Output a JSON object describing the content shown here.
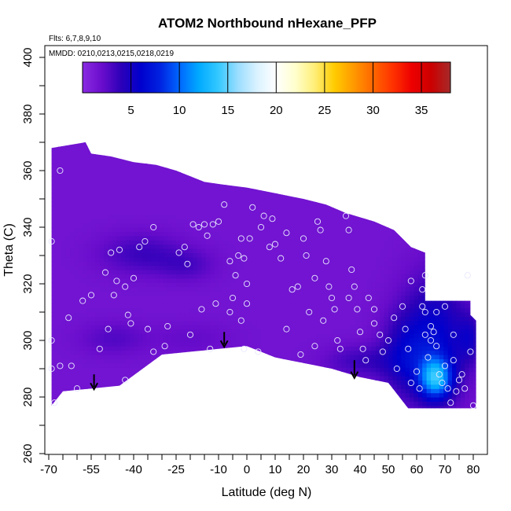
{
  "chart_data": {
    "type": "heatmap",
    "title": "ATOM2 Northbound nHexane_PFP",
    "subtitle_lines": [
      "Flts: 6,7,8,9,10",
      "MMDD: 0210,0213,0215,0218,0219"
    ],
    "xlabel": "Latitude (deg N)",
    "ylabel": "Theta (C)",
    "xlim": [
      -72,
      83
    ],
    "ylim": [
      260,
      405
    ],
    "xticks": [
      -70,
      -55,
      -40,
      -25,
      -10,
      0,
      10,
      20,
      30,
      40,
      50,
      60,
      70,
      80
    ],
    "xtick_labels": [
      "-70",
      "-55",
      "-40",
      "-25",
      "-10",
      "0",
      "10",
      "20",
      "30",
      "40",
      "50",
      "60",
      "70",
      "80"
    ],
    "yticks": [
      260,
      280,
      300,
      320,
      340,
      360,
      380,
      400
    ],
    "ytick_labels": [
      "260",
      "280",
      "300",
      "320",
      "340",
      "360",
      "380",
      "400"
    ],
    "colorbar": {
      "min": 0,
      "max": 38,
      "ticks": [
        5,
        10,
        15,
        20,
        25,
        30,
        35
      ],
      "tick_labels": [
        "5",
        "10",
        "15",
        "20",
        "25",
        "30",
        "35"
      ],
      "colors": [
        "#8a2be2",
        "#6a0dcc",
        "#2c00b8",
        "#0000cd",
        "#0022e0",
        "#0066ff",
        "#00aaff",
        "#33c8ff",
        "#99ddff",
        "#d9f2ff",
        "#ffffff",
        "#ffffcc",
        "#ffee77",
        "#ffcc00",
        "#ff9900",
        "#ff6600",
        "#ff3300",
        "#ee0000",
        "#cc0000",
        "#a52a2a"
      ]
    },
    "field": {
      "top_boundary": [
        [
          -69,
          368
        ],
        [
          -57,
          370
        ],
        [
          -55,
          366
        ],
        [
          -48,
          365
        ],
        [
          -40,
          363
        ],
        [
          -32,
          362
        ],
        [
          -25,
          360
        ],
        [
          -15,
          356
        ],
        [
          -8,
          355
        ],
        [
          0,
          354
        ],
        [
          10,
          352
        ],
        [
          20,
          350
        ],
        [
          28,
          348
        ],
        [
          35,
          345
        ],
        [
          45,
          342
        ],
        [
          52,
          339
        ],
        [
          58,
          333
        ],
        [
          63,
          331
        ],
        [
          63,
          314
        ],
        [
          79,
          314
        ],
        [
          79,
          309
        ],
        [
          81,
          307
        ]
      ],
      "bottom_boundary": [
        [
          81,
          276
        ],
        [
          57,
          276
        ],
        [
          50,
          285
        ],
        [
          40,
          287
        ],
        [
          30,
          290
        ],
        [
          15,
          293
        ],
        [
          10,
          294
        ],
        [
          0,
          298
        ],
        [
          -10,
          297
        ],
        [
          -30,
          295
        ],
        [
          -45,
          284
        ],
        [
          -55,
          283
        ],
        [
          -65,
          282
        ],
        [
          -69,
          277
        ]
      ],
      "base_value": 1.5,
      "blobs": [
        {
          "x": -38,
          "y": 330,
          "sx": 10,
          "sy": 5,
          "v": 3.5
        },
        {
          "x": -22,
          "y": 326,
          "sx": 7,
          "sy": 4,
          "v": 3.0
        },
        {
          "x": -48,
          "y": 300,
          "sx": 8,
          "sy": 4,
          "v": 2.8
        },
        {
          "x": -20,
          "y": 300,
          "sx": 10,
          "sy": 4,
          "v": 2.2
        },
        {
          "x": 40,
          "y": 292,
          "sx": 9,
          "sy": 4,
          "v": 3.5
        },
        {
          "x": 55,
          "y": 294,
          "sx": 6,
          "sy": 10,
          "v": 4.5
        },
        {
          "x": 66,
          "y": 300,
          "sx": 8,
          "sy": 15,
          "v": 6.0
        },
        {
          "x": 66,
          "y": 286,
          "sx": 4,
          "sy": 5,
          "v": 11.0
        },
        {
          "x": 78,
          "y": 300,
          "sx": 3,
          "sy": 6,
          "v": 4.0
        }
      ]
    },
    "samples": [
      [
        -69,
        335
      ],
      [
        -69,
        300
      ],
      [
        -69,
        290
      ],
      [
        -68,
        278
      ],
      [
        -66,
        360
      ],
      [
        -66,
        291
      ],
      [
        -63,
        308
      ],
      [
        -62,
        291
      ],
      [
        -60,
        283
      ],
      [
        -52,
        297
      ],
      [
        -50,
        324
      ],
      [
        -48,
        331
      ],
      [
        -45,
        332
      ],
      [
        -43,
        319
      ],
      [
        -43,
        286
      ],
      [
        -42,
        309
      ],
      [
        -41,
        306
      ],
      [
        -40,
        322
      ],
      [
        -38,
        333
      ],
      [
        -36,
        335
      ],
      [
        -33,
        340
      ],
      [
        -22,
        333
      ],
      [
        -19,
        341
      ],
      [
        -17,
        340
      ],
      [
        -15,
        341
      ],
      [
        -12,
        341
      ],
      [
        -8,
        348
      ],
      [
        -6,
        328
      ],
      [
        -6,
        310
      ],
      [
        -5,
        315
      ],
      [
        -4,
        323
      ],
      [
        -3,
        330
      ],
      [
        -2,
        336
      ],
      [
        -1,
        297
      ],
      [
        0,
        313
      ],
      [
        0,
        320
      ],
      [
        -1,
        329
      ],
      [
        1,
        336
      ],
      [
        2,
        347
      ],
      [
        -10,
        342
      ],
      [
        -14,
        337
      ],
      [
        -13,
        297
      ],
      [
        -11,
        313
      ],
      [
        -16,
        311
      ],
      [
        -20,
        302
      ],
      [
        -21,
        327
      ],
      [
        -24,
        331
      ],
      [
        -28,
        305
      ],
      [
        -29,
        298
      ],
      [
        -33,
        296
      ],
      [
        -35,
        304
      ],
      [
        -46,
        321
      ],
      [
        -47,
        316
      ],
      [
        -49,
        304
      ],
      [
        -55,
        316
      ],
      [
        -58,
        314
      ],
      [
        4,
        296
      ],
      [
        5,
        340
      ],
      [
        6,
        344
      ],
      [
        9,
        343
      ],
      [
        10,
        334
      ],
      [
        12,
        329
      ],
      [
        14,
        304
      ],
      [
        16,
        318
      ],
      [
        18,
        319
      ],
      [
        19,
        295
      ],
      [
        20,
        336
      ],
      [
        21,
        330
      ],
      [
        22,
        310
      ],
      [
        24,
        298
      ],
      [
        25,
        342
      ],
      [
        26,
        339
      ],
      [
        27,
        307
      ],
      [
        28,
        328
      ],
      [
        29,
        319
      ],
      [
        30,
        315
      ],
      [
        31,
        311
      ],
      [
        32,
        300
      ],
      [
        33,
        297
      ],
      [
        35,
        344
      ],
      [
        36,
        339
      ],
      [
        37,
        325
      ],
      [
        38,
        319
      ],
      [
        39,
        311
      ],
      [
        40,
        303
      ],
      [
        41,
        297
      ],
      [
        42,
        293
      ],
      [
        43,
        315
      ],
      [
        45,
        311
      ],
      [
        45,
        306
      ],
      [
        47,
        302
      ],
      [
        48,
        296
      ],
      [
        50,
        300
      ],
      [
        52,
        308
      ],
      [
        53,
        290
      ],
      [
        55,
        312
      ],
      [
        56,
        304
      ],
      [
        57,
        297
      ],
      [
        58,
        285
      ],
      [
        60,
        289
      ],
      [
        61,
        283
      ],
      [
        62,
        312
      ],
      [
        63,
        310
      ],
      [
        63,
        302
      ],
      [
        64,
        294
      ],
      [
        65,
        300
      ],
      [
        65,
        305
      ],
      [
        66,
        303
      ],
      [
        67,
        298
      ],
      [
        68,
        288
      ],
      [
        69,
        285
      ],
      [
        70,
        291
      ],
      [
        71,
        283
      ],
      [
        72,
        278
      ],
      [
        73,
        293
      ],
      [
        74,
        282
      ],
      [
        75,
        286
      ],
      [
        76,
        288
      ],
      [
        77,
        283
      ],
      [
        79,
        296
      ],
      [
        80,
        277
      ],
      [
        67,
        310
      ],
      [
        70,
        312
      ],
      [
        73,
        302
      ],
      [
        62,
        318
      ],
      [
        63,
        323
      ],
      [
        58,
        321
      ],
      [
        78,
        323
      ],
      [
        36,
        315
      ],
      [
        8,
        333
      ],
      [
        -2,
        307
      ],
      [
        14,
        338
      ],
      [
        24,
        322
      ]
    ],
    "arrows": [
      {
        "x": -54,
        "y_top": 288,
        "y_bottom": 283
      },
      {
        "x": -8,
        "y_top": 303,
        "y_bottom": 298
      },
      {
        "x": 38,
        "y_top": 293,
        "y_bottom": 287
      }
    ]
  }
}
